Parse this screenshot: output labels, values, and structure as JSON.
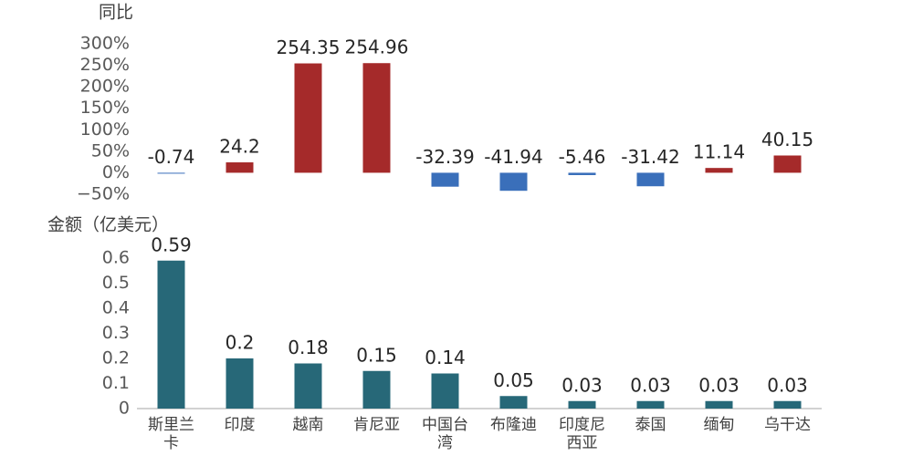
{
  "chart_data": [
    {
      "type": "bar",
      "title": "同比",
      "values": [
        -0.74,
        24.2,
        254.35,
        254.96,
        -32.39,
        -41.94,
        -5.46,
        -31.42,
        11.14,
        40.15
      ],
      "color_positive": "#a52a2a",
      "color_negative": "#3a6fba",
      "ylim": [
        -50,
        300
      ],
      "yticks": [
        {
          "value": -50,
          "label": "−50%"
        },
        {
          "value": 0,
          "label": "0%"
        },
        {
          "value": 50,
          "label": "50%"
        },
        {
          "value": 100,
          "label": "100%"
        },
        {
          "value": 150,
          "label": "150%"
        },
        {
          "value": 200,
          "label": "200%"
        },
        {
          "value": 250,
          "label": "250%"
        },
        {
          "value": 300,
          "label": "300%"
        }
      ]
    },
    {
      "type": "bar",
      "title": "金额（亿美元）",
      "categories": [
        "斯里兰卡",
        "印度",
        "越南",
        "肯尼亚",
        "中国台湾",
        "布隆迪",
        "印度尼西亚",
        "泰国",
        "缅甸",
        "乌干达"
      ],
      "values": [
        0.59,
        0.2,
        0.18,
        0.15,
        0.14,
        0.05,
        0.03,
        0.03,
        0.03,
        0.03
      ],
      "color": "#276878",
      "ylim": [
        0,
        0.6
      ],
      "yticks": [
        0,
        0.1,
        0.2,
        0.3,
        0.4,
        0.5,
        0.6
      ]
    }
  ]
}
